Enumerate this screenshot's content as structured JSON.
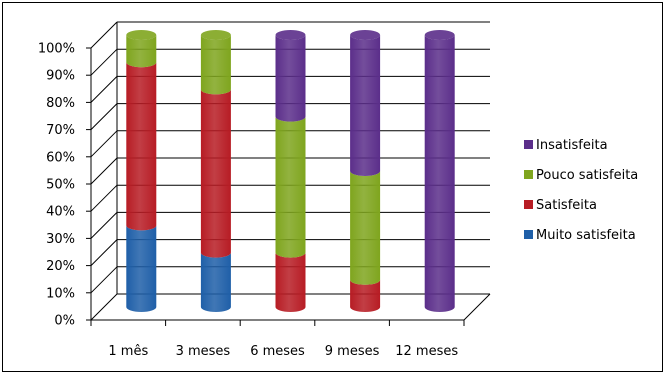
{
  "chart_data": {
    "type": "bar",
    "stacked": true,
    "percent_stacked": true,
    "style": "3d-cylinder",
    "title": "",
    "xlabel": "",
    "ylabel": "",
    "ylim": [
      0,
      100
    ],
    "yticks": [
      "0%",
      "10%",
      "20%",
      "30%",
      "40%",
      "50%",
      "60%",
      "70%",
      "80%",
      "90%",
      "100%"
    ],
    "categories": [
      "1 mês",
      "3 meses",
      "6 meses",
      "9 meses",
      "12 meses"
    ],
    "series": [
      {
        "name": "Muito satisfeita",
        "color": "#1F5FA8",
        "values": [
          30,
          20,
          0,
          0,
          0
        ]
      },
      {
        "name": "Satisfeita",
        "color": "#B71C24",
        "values": [
          60,
          60,
          20,
          10,
          0
        ]
      },
      {
        "name": "Pouco satisfeita",
        "color": "#7FA51E",
        "values": [
          10,
          20,
          50,
          40,
          0
        ]
      },
      {
        "name": "Insatisfeita",
        "color": "#5B2E8A",
        "values": [
          0,
          0,
          30,
          50,
          100
        ]
      }
    ],
    "legend": {
      "position": "right",
      "order": [
        "Insatisfeita",
        "Pouco satisfeita",
        "Satisfeita",
        "Muito satisfeita"
      ]
    },
    "grid": true
  }
}
